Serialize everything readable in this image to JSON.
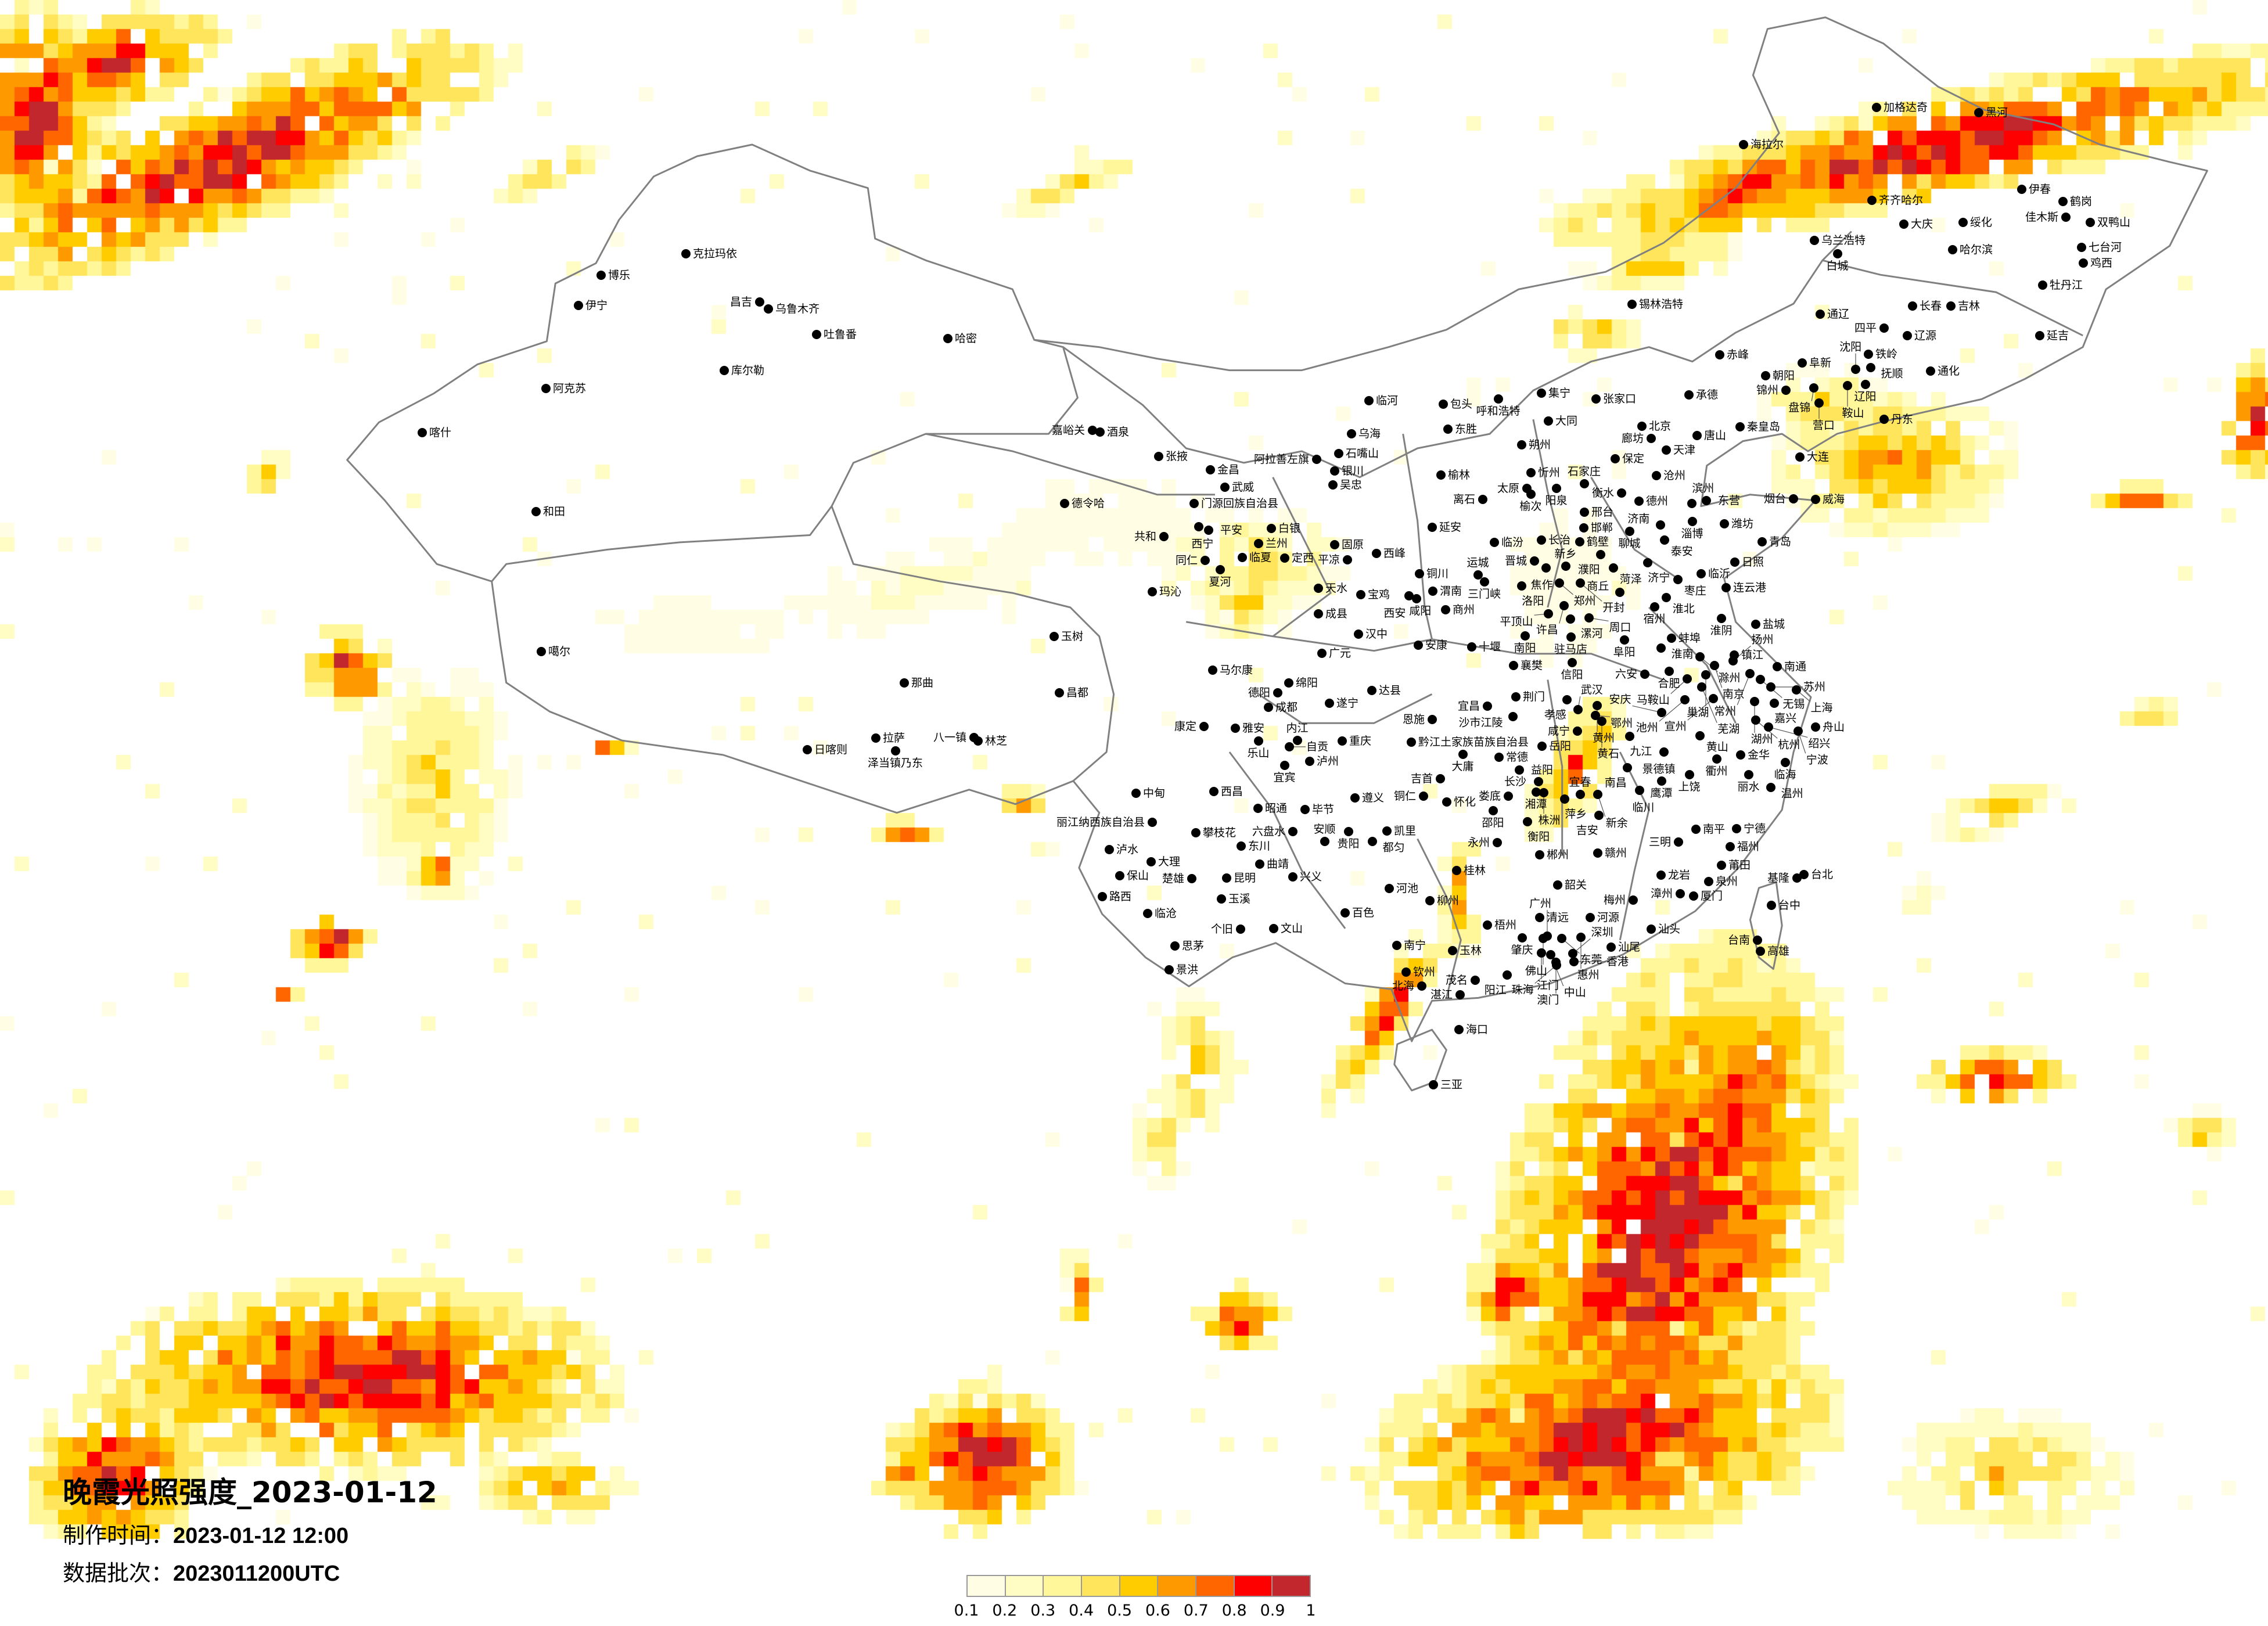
{
  "title": "晚霞光照强度_2023-01-12",
  "production_time": {
    "label": "制作时间：",
    "value": "2023-01-12 12:00"
  },
  "data_batch": {
    "label": "数据批次：",
    "value": "2023011200UTC"
  },
  "legend": {
    "colors": [
      "#FFFEE5",
      "#FFFCC4",
      "#FFF799",
      "#FFE55C",
      "#FFCC00",
      "#FF9900",
      "#FF6600",
      "#FF0000",
      "#C1272D"
    ],
    "labels": [
      "0.1",
      "0.2",
      "0.3",
      "0.4",
      "0.5",
      "0.6",
      "0.7",
      "0.8",
      "0.9",
      "1"
    ]
  },
  "map": {
    "border_color": "#808080",
    "city_marker_color": "#000000"
  },
  "cities": [
    "克拉玛依",
    "博乐",
    "伊宁",
    "昌吉",
    "乌鲁木齐",
    "吐鲁番",
    "哈密",
    "库尔勒",
    "阿克苏",
    "喀什",
    "和田",
    "嘉峪关",
    "酒泉",
    "张掖",
    "金昌",
    "武威",
    "德令哈",
    "门源回族自治县",
    "西宁",
    "平安",
    "共和",
    "白银",
    "兰州",
    "同仁",
    "临夏",
    "定西",
    "夏河",
    "玛沁",
    "天水",
    "成县",
    "玉树",
    "噶尔",
    "那曲",
    "昌都",
    "拉萨",
    "泽当镇乃东",
    "日喀则",
    "八一镇",
    "林芝",
    "临河",
    "包头",
    "呼和浩特",
    "集宁",
    "乌海",
    "东胜",
    "大同",
    "石嘴山",
    "阿拉善左旗",
    "银川",
    "榆林",
    "朔州",
    "吴忠",
    "忻州",
    "太原",
    "榆次",
    "阳泉",
    "离石",
    "延安",
    "固原",
    "临汾",
    "长治",
    "平凉",
    "西峰",
    "铜川",
    "晋城",
    "运城",
    "宝鸡",
    "咸阳",
    "渭南",
    "西安",
    "商州",
    "汉中",
    "安康",
    "十堰",
    "广元",
    "马尔康",
    "绵阳",
    "德阳",
    "达县",
    "成都",
    "遂宁",
    "康定",
    "雅安",
    "乐山",
    "自贡",
    "内江",
    "重庆",
    "黔江土家族苗族自治县",
    "大庸",
    "常德",
    "宜宾",
    "泸州",
    "吉首",
    "西昌",
    "中甸",
    "遵义",
    "铜仁",
    "怀化",
    "昭通",
    "毕节",
    "丽江纳西族自治县",
    "攀枝花",
    "六盘水",
    "贵阳",
    "凯里",
    "安顺",
    "都匀",
    "东川",
    "泸水",
    "大理",
    "曲靖",
    "保山",
    "楚雄",
    "昆明",
    "兴义",
    "河池",
    "路西",
    "玉溪",
    "柳州",
    "临沧",
    "百色",
    "个旧",
    "文山",
    "思茅",
    "南宁",
    "景洪",
    "海拉尔",
    "加格达奇",
    "黑河",
    "齐齐哈尔",
    "伊春",
    "鹤岗",
    "佳木斯",
    "双鸭山",
    "大庆",
    "绥化",
    "乌兰浩特",
    "白城",
    "哈尔滨",
    "七台河",
    "鸡西",
    "牡丹江",
    "锡林浩特",
    "通辽",
    "长春",
    "吉林",
    "四平",
    "辽源",
    "延吉",
    "赤峰",
    "阜新",
    "铁岭",
    "沈阳",
    "抚顺",
    "朝阳",
    "通化",
    "锦州",
    "盘锦",
    "辽阳",
    "鞍山",
    "营口",
    "丹东",
    "张家口",
    "承德",
    "北京",
    "廊坊",
    "唐山",
    "秦皇岛",
    "天津",
    "保定",
    "大连",
    "沧州",
    "石家庄",
    "衡水",
    "德州",
    "烟台",
    "威海",
    "滨州",
    "东营",
    "邢台",
    "邯郸",
    "济南",
    "淄博",
    "潍坊",
    "聊城",
    "泰安",
    "青岛",
    "鹤壁",
    "濮阳",
    "新乡",
    "焦作",
    "菏泽",
    "济宁",
    "日照",
    "临沂",
    "枣庄",
    "三门峡",
    "洛阳",
    "郑州",
    "开封",
    "连云港",
    "商丘",
    "淮北",
    "许昌",
    "宿州",
    "平顶山",
    "漯河",
    "周口",
    "淮阴",
    "盐城",
    "南阳",
    "驻马店",
    "阜阳",
    "蚌埠",
    "淮南",
    "滁州",
    "镇江",
    "扬州",
    "南通",
    "信阳",
    "襄樊",
    "六安",
    "合肥",
    "南京",
    "常州",
    "巢湖",
    "无锡",
    "马鞍山",
    "芜湖",
    "苏州",
    "上海",
    "荆门",
    "孝感",
    "宣州",
    "宜昌",
    "湖州",
    "嘉兴",
    "池州",
    "安庆",
    "武汉",
    "鄂州",
    "黄州",
    "恩施",
    "沙市江陵",
    "杭州",
    "岳阳",
    "咸宁",
    "黄石",
    "九江",
    "黄山",
    "景德镇",
    "益阳",
    "南昌",
    "衢州",
    "金华",
    "绍兴",
    "宁波",
    "舟山",
    "临海",
    "鹰潭",
    "上饶",
    "丽水",
    "长沙",
    "临川",
    "温州",
    "娄底",
    "湘潭",
    "株洲",
    "萍乡",
    "宜春",
    "新余",
    "邵阳",
    "吉安",
    "衡阳",
    "南平",
    "宁德",
    "三明",
    "永州",
    "福州",
    "郴州",
    "赣州",
    "莆田",
    "桂林",
    "龙岩",
    "泉州",
    "台北",
    "基隆",
    "韶关",
    "漳州",
    "厦门",
    "梅州",
    "台中",
    "清远",
    "河源",
    "梧州",
    "汕头",
    "肇庆",
    "佛山",
    "广州",
    "东莞",
    "惠州",
    "台南",
    "汕尾",
    "玉林",
    "江门",
    "中山",
    "深圳",
    "高雄",
    "香港",
    "澳门",
    "珠海",
    "钦州",
    "阳江",
    "茂名",
    "北海",
    "湛江",
    "海口",
    "三亚"
  ]
}
